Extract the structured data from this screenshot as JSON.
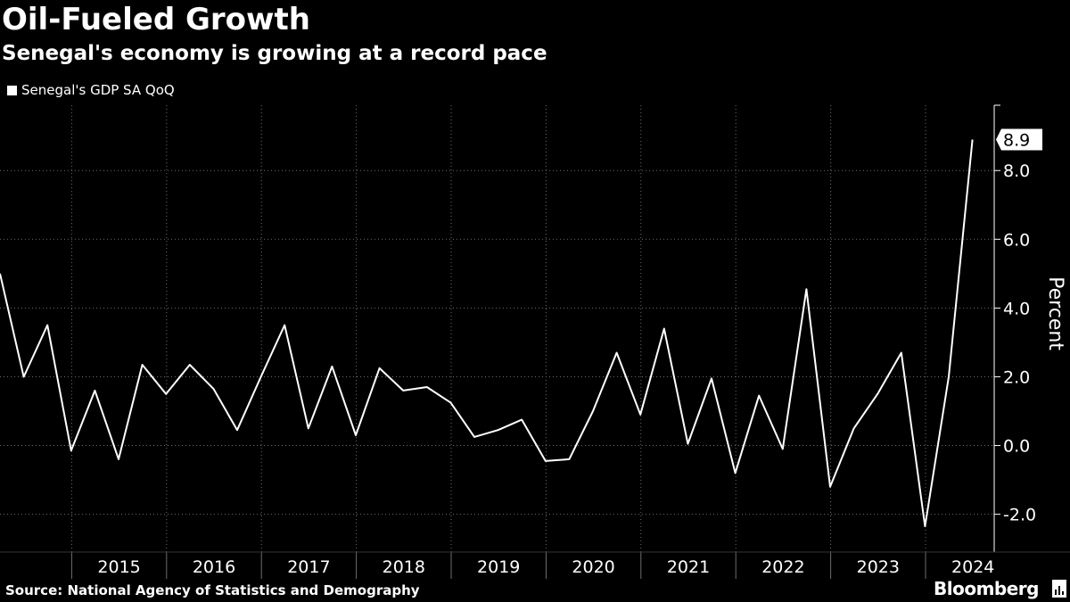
{
  "header": {
    "title": "Oil-Fueled Growth",
    "subtitle": "Senegal's economy is growing at a record pace"
  },
  "legend": {
    "label": "Senegal's GDP SA QoQ"
  },
  "footer": {
    "source": "Source: National Agency of Statistics and Demography",
    "brand": "Bloomberg"
  },
  "colors": {
    "background": "#000000",
    "line": "#ffffff",
    "grid": "#6e6e6e"
  },
  "chart_data": {
    "type": "line",
    "title": "Oil-Fueled Growth",
    "subtitle": "Senegal's economy is growing at a record pace",
    "ylabel": "Percent",
    "xlabel": "",
    "ylim": [
      -3.1,
      9.9
    ],
    "yticks": [
      -2,
      0,
      2,
      4,
      6,
      8
    ],
    "ytick_labels": [
      "-2.0",
      "0.0",
      "2.0",
      "4.0",
      "6.0",
      "8.0"
    ],
    "year_labels": [
      "2015",
      "2016",
      "2017",
      "2018",
      "2019",
      "2020",
      "2021",
      "2022",
      "2023",
      "2024"
    ],
    "legend_position": "top-left",
    "grid": true,
    "last_value_label": "8.9",
    "series": [
      {
        "name": "Senegal's GDP SA QoQ",
        "x": [
          "2014-Q2",
          "2014-Q3",
          "2014-Q4",
          "2015-Q1",
          "2015-Q2",
          "2015-Q3",
          "2015-Q4",
          "2016-Q1",
          "2016-Q2",
          "2016-Q3",
          "2016-Q4",
          "2017-Q1",
          "2017-Q2",
          "2017-Q3",
          "2017-Q4",
          "2018-Q1",
          "2018-Q2",
          "2018-Q3",
          "2018-Q4",
          "2019-Q1",
          "2019-Q2",
          "2019-Q3",
          "2019-Q4",
          "2020-Q1",
          "2020-Q2",
          "2020-Q3",
          "2020-Q4",
          "2021-Q1",
          "2021-Q2",
          "2021-Q3",
          "2021-Q4",
          "2022-Q1",
          "2022-Q2",
          "2022-Q3",
          "2022-Q4",
          "2023-Q1",
          "2023-Q2",
          "2023-Q3",
          "2023-Q4",
          "2024-Q1",
          "2024-Q2",
          "2024-Q3"
        ],
        "values": [
          5.0,
          2.0,
          3.5,
          -0.15,
          1.6,
          -0.4,
          2.35,
          1.5,
          2.35,
          1.65,
          0.45,
          2.0,
          3.5,
          0.5,
          2.3,
          0.3,
          2.25,
          1.6,
          1.7,
          1.25,
          0.25,
          0.45,
          0.75,
          -0.45,
          -0.4,
          1.0,
          2.7,
          0.9,
          3.4,
          0.05,
          1.95,
          -0.8,
          1.45,
          -0.1,
          4.55,
          -1.2,
          0.5,
          1.5,
          2.7,
          -2.35,
          2.0,
          8.9
        ]
      }
    ]
  }
}
